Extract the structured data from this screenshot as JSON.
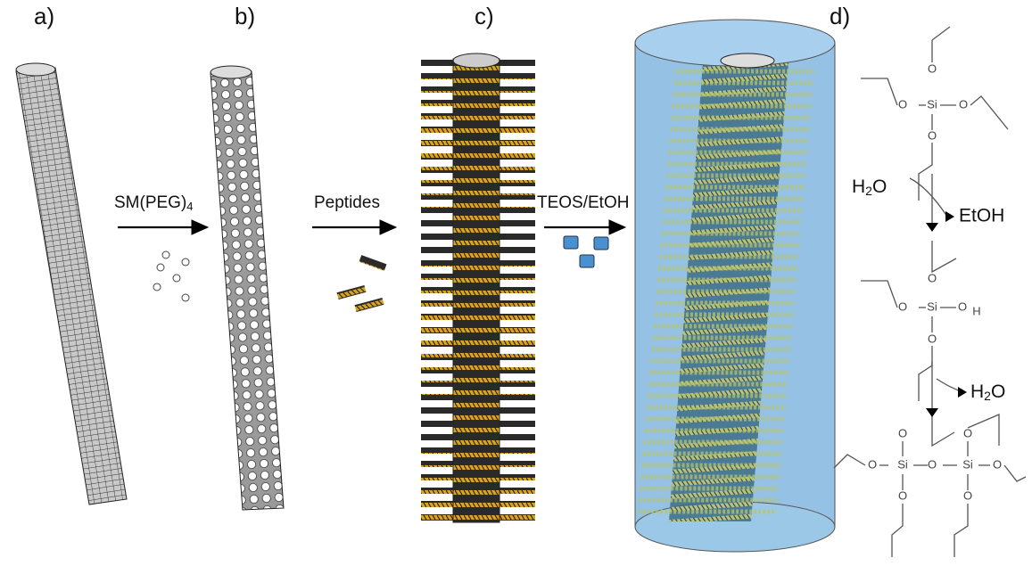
{
  "panels": [
    {
      "label": "a)"
    },
    {
      "label": "b)"
    },
    {
      "label": "c)"
    },
    {
      "label": "d)"
    }
  ],
  "steps": [
    {
      "text": "SM(PEG)",
      "sub": "4"
    },
    {
      "text": "Peptides"
    },
    {
      "text": "TEOS/EtOH"
    }
  ],
  "molecules": [
    {
      "atoms": [
        "O",
        "Si",
        "O",
        "O",
        "O"
      ]
    },
    {
      "atoms": [
        "O",
        "Si",
        "O",
        "H",
        "O"
      ]
    },
    {
      "atoms": [
        "O",
        "Si",
        "O",
        "Si",
        "O",
        "O",
        "O",
        "O",
        "O"
      ]
    }
  ],
  "reactions": [
    {
      "reactant": {
        "text": "H",
        "sub": "2",
        "rest": "O"
      },
      "product": "EtOH"
    },
    {
      "product": {
        "text": "H",
        "sub": "2",
        "rest": "O"
      }
    }
  ]
}
